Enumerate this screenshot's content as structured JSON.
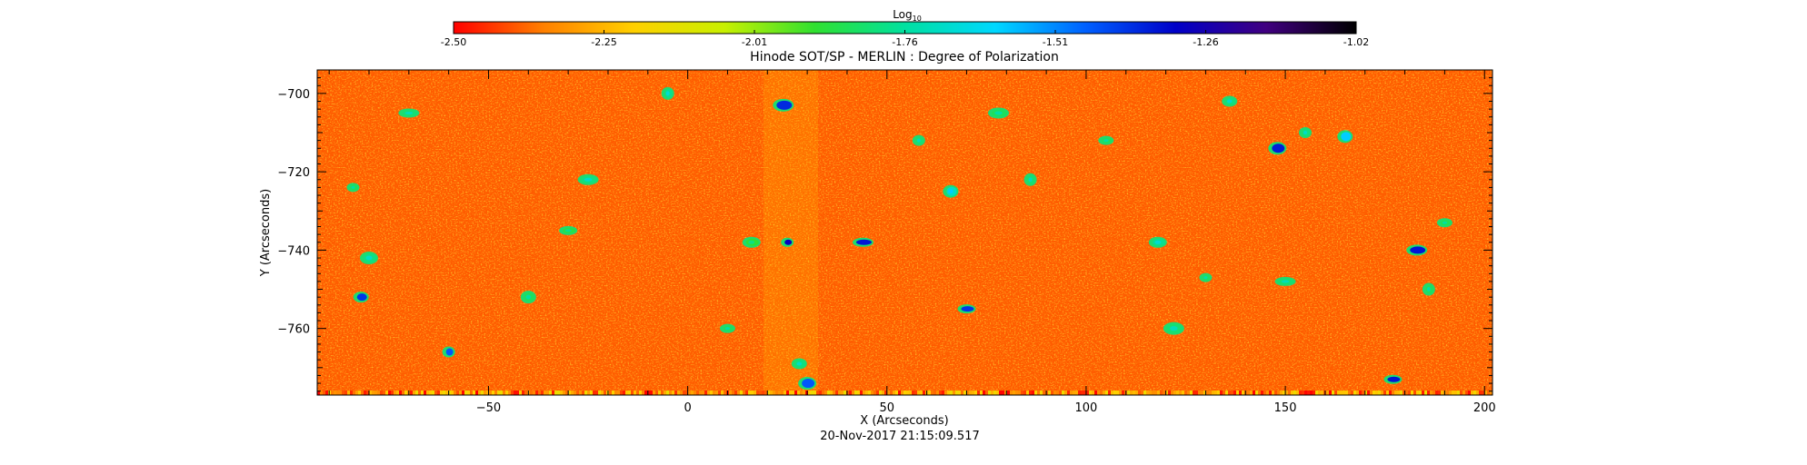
{
  "chart_data": {
    "type": "heatmap",
    "title": "Hinode SOT/SP - MERLIN : Degree of Polarization",
    "colorbar": {
      "label_base": "Log",
      "label_sub": "10",
      "ticks": [
        "-2.50",
        "-2.25",
        "-2.01",
        "-1.76",
        "-1.51",
        "-1.26",
        "-1.02"
      ],
      "range": [
        -2.5,
        -1.02
      ],
      "colormap_stops": [
        "#ff0000",
        "#ff8000",
        "#ffd000",
        "#c8f000",
        "#30e030",
        "#00e0a0",
        "#00d8ff",
        "#0060ff",
        "#0000c8",
        "#400080",
        "#000000"
      ]
    },
    "xlabel": "X (Arcseconds)",
    "ylabel": "Y (Arcseconds)",
    "xlim": [
      -93,
      202
    ],
    "ylim": [
      -777,
      -694
    ],
    "xticks": [
      -50,
      0,
      50,
      100,
      150,
      200
    ],
    "yticks": [
      -700,
      -720,
      -740,
      -760
    ],
    "footer": "20-Nov-2017 21:15:09.517",
    "grid": false,
    "features": [
      {
        "x": -84,
        "y": -724,
        "v": -1.85
      },
      {
        "x": -82,
        "y": -752,
        "v": -1.4
      },
      {
        "x": -80,
        "y": -742,
        "v": -1.8
      },
      {
        "x": -70,
        "y": -705,
        "v": -1.82
      },
      {
        "x": -60,
        "y": -766,
        "v": -1.45
      },
      {
        "x": -40,
        "y": -752,
        "v": -1.85
      },
      {
        "x": -30,
        "y": -735,
        "v": -1.88
      },
      {
        "x": -25,
        "y": -722,
        "v": -1.8
      },
      {
        "x": -5,
        "y": -700,
        "v": -1.78
      },
      {
        "x": 10,
        "y": -760,
        "v": -1.85
      },
      {
        "x": 16,
        "y": -738,
        "v": -1.9
      },
      {
        "x": 24,
        "y": -703,
        "v": -1.38
      },
      {
        "x": 25,
        "y": -738,
        "v": -1.3
      },
      {
        "x": 28,
        "y": -769,
        "v": -1.8
      },
      {
        "x": 30,
        "y": -774,
        "v": -1.45
      },
      {
        "x": 44,
        "y": -738,
        "v": -1.35
      },
      {
        "x": 58,
        "y": -712,
        "v": -1.82
      },
      {
        "x": 66,
        "y": -725,
        "v": -1.7
      },
      {
        "x": 70,
        "y": -755,
        "v": -1.4
      },
      {
        "x": 78,
        "y": -705,
        "v": -1.85
      },
      {
        "x": 86,
        "y": -722,
        "v": -1.82
      },
      {
        "x": 105,
        "y": -712,
        "v": -1.85
      },
      {
        "x": 118,
        "y": -738,
        "v": -1.78
      },
      {
        "x": 122,
        "y": -760,
        "v": -1.82
      },
      {
        "x": 130,
        "y": -747,
        "v": -1.84
      },
      {
        "x": 136,
        "y": -702,
        "v": -1.8
      },
      {
        "x": 148,
        "y": -714,
        "v": -1.36
      },
      {
        "x": 150,
        "y": -748,
        "v": -1.82
      },
      {
        "x": 155,
        "y": -710,
        "v": -1.8
      },
      {
        "x": 165,
        "y": -711,
        "v": -1.6
      },
      {
        "x": 177,
        "y": -773,
        "v": -1.35
      },
      {
        "x": 183,
        "y": -740,
        "v": -1.35
      },
      {
        "x": 186,
        "y": -750,
        "v": -1.85
      },
      {
        "x": 190,
        "y": -733,
        "v": -1.86
      }
    ]
  }
}
